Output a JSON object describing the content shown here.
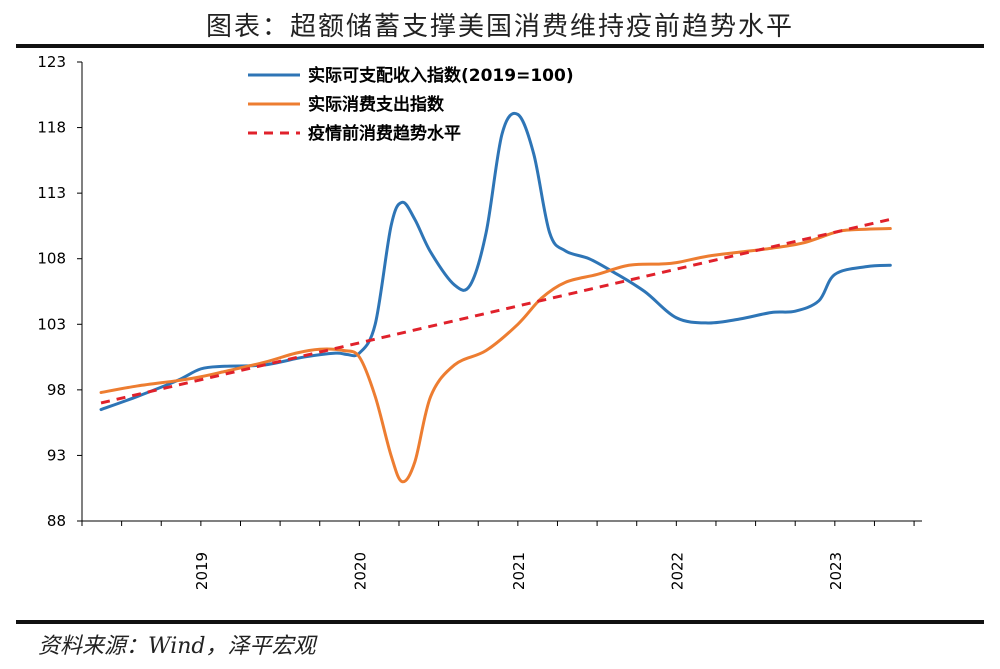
{
  "title": "图表：超额储蓄支撑美国消费维持疫前趋势水平",
  "source": "资料来源：Wind，泽平宏观",
  "chart_data": {
    "type": "line",
    "xlabel": "",
    "ylabel": "",
    "ylim": [
      88,
      123
    ],
    "yticks": [
      88,
      93,
      98,
      103,
      108,
      113,
      118,
      123
    ],
    "xlim": [
      2018.25,
      2023.55
    ],
    "xticks": [
      2019,
      2020,
      2021,
      2022,
      2023
    ],
    "xtick_labels": [
      "2019",
      "2020",
      "2021",
      "2022",
      "2023"
    ],
    "grid": false,
    "legend_position": "top-left",
    "series": [
      {
        "name": "实际可支配收入指数(2019=100)",
        "color": "#2E75B6",
        "dash": "solid",
        "x": [
          2018.37,
          2018.6,
          2018.85,
          2019.0,
          2019.15,
          2019.4,
          2019.65,
          2019.85,
          2019.92,
          2020.0,
          2020.1,
          2020.2,
          2020.27,
          2020.35,
          2020.45,
          2020.6,
          2020.7,
          2020.8,
          2020.9,
          2021.0,
          2021.1,
          2021.2,
          2021.3,
          2021.45,
          2021.6,
          2021.8,
          2022.0,
          2022.2,
          2022.4,
          2022.6,
          2022.75,
          2022.9,
          2023.0,
          2023.2,
          2023.35
        ],
        "y": [
          96.5,
          97.5,
          98.7,
          99.6,
          99.8,
          99.9,
          100.5,
          100.8,
          100.7,
          100.8,
          103.0,
          110.5,
          112.3,
          111.0,
          108.5,
          106.0,
          106.0,
          110.0,
          117.5,
          119.0,
          116.0,
          110.0,
          108.6,
          108.0,
          107.0,
          105.5,
          103.5,
          103.1,
          103.4,
          103.9,
          104.0,
          104.8,
          106.8,
          107.4,
          107.5
        ]
      },
      {
        "name": "实际消费支出指数",
        "color": "#ED7D31",
        "dash": "solid",
        "x": [
          2018.37,
          2018.6,
          2018.85,
          2019.0,
          2019.15,
          2019.4,
          2019.6,
          2019.75,
          2019.9,
          2020.0,
          2020.1,
          2020.2,
          2020.27,
          2020.35,
          2020.45,
          2020.6,
          2020.8,
          2021.0,
          2021.15,
          2021.3,
          2021.5,
          2021.7,
          2021.9,
          2022.0,
          2022.2,
          2022.4,
          2022.6,
          2022.8,
          2023.0,
          2023.1,
          2023.35
        ],
        "y": [
          97.8,
          98.3,
          98.7,
          99.0,
          99.4,
          100.1,
          100.8,
          101.1,
          101.0,
          100.5,
          97.5,
          93.0,
          91.0,
          92.5,
          97.5,
          99.9,
          101.0,
          103.0,
          105.0,
          106.2,
          106.8,
          107.5,
          107.6,
          107.7,
          108.2,
          108.5,
          108.8,
          109.2,
          110.0,
          110.2,
          110.3
        ]
      },
      {
        "name": "疫情前消费趋势水平",
        "color": "#E0212B",
        "dash": "dashed",
        "x": [
          2018.37,
          2023.35
        ],
        "y": [
          97.0,
          111.0
        ]
      }
    ]
  }
}
